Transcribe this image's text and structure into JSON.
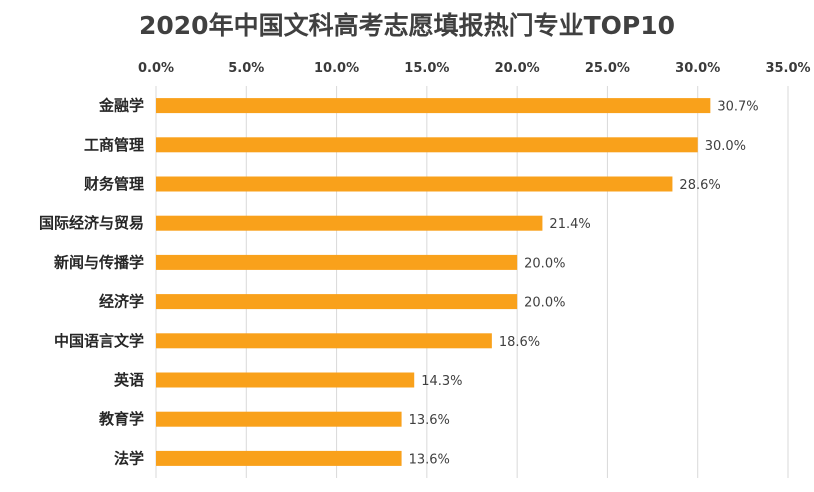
{
  "chart_data": {
    "type": "bar",
    "orientation": "horizontal",
    "title": "2020年中国文科高考志愿填报热门专业TOP10",
    "categories": [
      "金融学",
      "工商管理",
      "财务管理",
      "国际经济与贸易",
      "新闻与传播学",
      "经济学",
      "中国语言文学",
      "英语",
      "教育学",
      "法学"
    ],
    "values": [
      30.7,
      30.0,
      28.6,
      21.4,
      20.0,
      20.0,
      18.6,
      14.3,
      13.6,
      13.6
    ],
    "data_labels": [
      "30.7%",
      "30.0%",
      "28.6%",
      "21.4%",
      "20.0%",
      "20.0%",
      "18.6%",
      "14.3%",
      "13.6%",
      "13.6%"
    ],
    "x_ticks": [
      0,
      5,
      10,
      15,
      20,
      25,
      30,
      35
    ],
    "x_tick_labels": [
      "0.0%",
      "5.0%",
      "10.0%",
      "15.0%",
      "20.0%",
      "25.0%",
      "30.0%",
      "35.0%"
    ],
    "xlim": [
      0,
      35
    ],
    "xlabel": "",
    "ylabel": "",
    "x_axis_position": "top",
    "grid": true,
    "legend": false,
    "bar_color": "#F9A11B",
    "grid_color": "#d9d9d9"
  }
}
